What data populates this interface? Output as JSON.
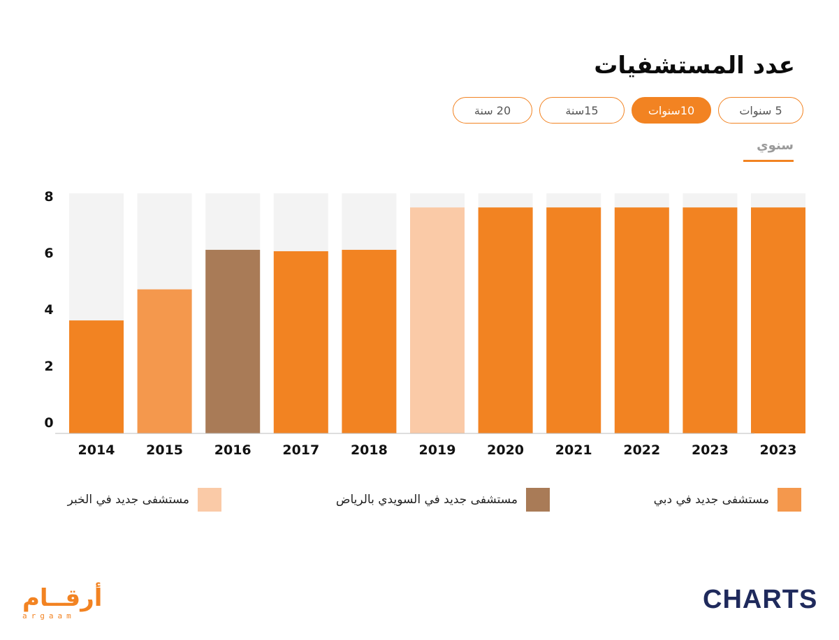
{
  "header": {
    "title": "عدد المستشفيات",
    "tabs": [
      {
        "label": "5 سنوات",
        "active": false
      },
      {
        "label": "10سنوات",
        "active": true
      },
      {
        "label": "15سنة",
        "active": false
      },
      {
        "label": "20 سنة",
        "active": false
      }
    ],
    "frequency_tab": "سنوي"
  },
  "colors": {
    "accent": "#f28322",
    "dubai": "#f4984d",
    "riyadh": "#a97b57",
    "khobar": "#facaa7",
    "track": "#f3f3f3"
  },
  "legend": [
    {
      "label": "مستشفى جديد في دبي",
      "color": "#f4984d"
    },
    {
      "label": "مستشفى جديد في السويدي بالرياض",
      "color": "#a97b57"
    },
    {
      "label": "مستشفى جديد في الخبر",
      "color": "#facaa7"
    }
  ],
  "chart_data": {
    "type": "bar",
    "title": "عدد المستشفيات",
    "categories": [
      "2014",
      "2015",
      "2016",
      "2017",
      "2018",
      "2019",
      "2020",
      "2021",
      "2022",
      "2023",
      "2023"
    ],
    "values": [
      4.0,
      5.1,
      6.5,
      6.45,
      6.5,
      8.0,
      8.0,
      8.0,
      8.0,
      8.0,
      8.0
    ],
    "bar_colors": [
      "#f28322",
      "#f4984d",
      "#a97b57",
      "#f28322",
      "#f28322",
      "#facaa7",
      "#f28322",
      "#f28322",
      "#f28322",
      "#f28322",
      "#f28322"
    ],
    "yticks": [
      0,
      2,
      4,
      6,
      8
    ],
    "ylim": [
      0,
      8.5
    ],
    "xlabel": "",
    "ylabel": "",
    "grid": false
  },
  "logos": {
    "argaam_ar": "أرقــام",
    "argaam_en": "argaam",
    "charts": "CHARTS"
  }
}
